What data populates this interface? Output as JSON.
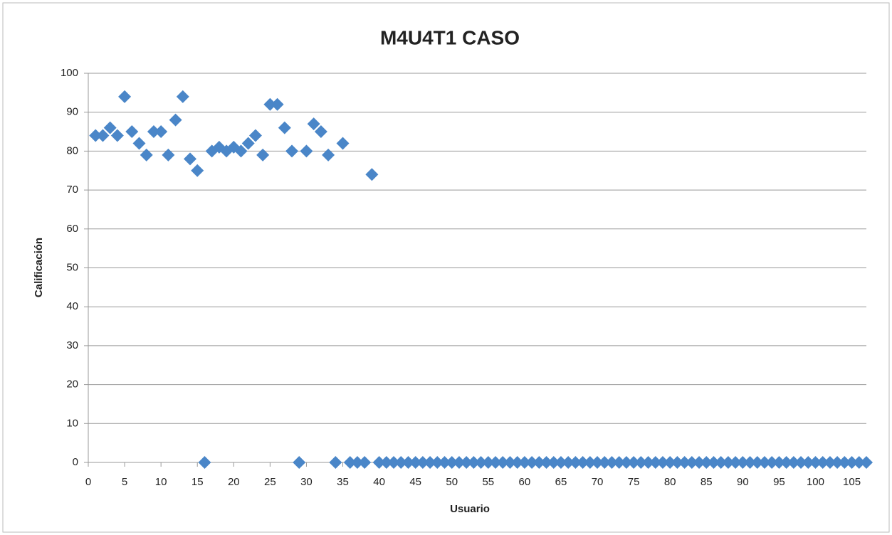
{
  "chart_data": {
    "type": "scatter",
    "title": "M4U4T1 CASO",
    "x_label": "Usuario",
    "y_label": "Calificación",
    "series": [
      {
        "name": null,
        "color": "#4a86c8",
        "x": [
          1,
          2,
          3,
          4,
          5,
          6,
          7,
          8,
          9,
          10,
          11,
          12,
          13,
          14,
          15,
          16,
          17,
          18,
          19,
          20,
          21,
          22,
          23,
          24,
          25,
          26,
          27,
          28,
          29,
          30,
          31,
          32,
          33,
          34,
          35,
          36,
          37,
          38,
          39,
          40,
          41,
          42,
          43,
          44,
          45,
          46,
          47,
          48,
          49,
          50,
          51,
          52,
          53,
          54,
          55,
          56,
          57,
          58,
          59,
          60,
          61,
          62,
          63,
          64,
          65,
          66,
          67,
          68,
          69,
          70,
          71,
          72,
          73,
          74,
          75,
          76,
          77,
          78,
          79,
          80,
          81,
          82,
          83,
          84,
          85,
          86,
          87,
          88,
          89,
          90,
          91,
          92,
          93,
          94,
          95,
          96,
          97,
          98,
          99,
          100,
          101,
          102,
          103,
          104,
          105,
          106,
          107
        ],
        "values": [
          84,
          84,
          86,
          84,
          94,
          85,
          82,
          79,
          85,
          85,
          79,
          88,
          94,
          78,
          75,
          0,
          80,
          81,
          80,
          81,
          80,
          82,
          84,
          79,
          92,
          92,
          86,
          80,
          0,
          80,
          87,
          85,
          79,
          0,
          82,
          0,
          0,
          0,
          74,
          0,
          0,
          0,
          0,
          0,
          0,
          0,
          0,
          0,
          0,
          0,
          0,
          0,
          0,
          0,
          0,
          0,
          0,
          0,
          0,
          0,
          0,
          0,
          0,
          0,
          0,
          0,
          0,
          0,
          0,
          0,
          0,
          0,
          0,
          0,
          0,
          0,
          0,
          0,
          0,
          0,
          0,
          0,
          0,
          0,
          0,
          0,
          0,
          0,
          0,
          0,
          0,
          0,
          0,
          0,
          0,
          0,
          0,
          0,
          0,
          0,
          0,
          0,
          0,
          0,
          0,
          0,
          0
        ]
      }
    ],
    "xlim": [
      0,
      107
    ],
    "xticks": [
      0,
      5,
      10,
      15,
      20,
      25,
      30,
      35,
      40,
      45,
      50,
      55,
      60,
      65,
      70,
      75,
      80,
      85,
      90,
      95,
      100,
      105
    ],
    "ylim": [
      0,
      100
    ],
    "yticks": [
      0,
      10,
      20,
      30,
      40,
      50,
      60,
      70,
      80,
      90,
      100
    ],
    "grid": true
  }
}
